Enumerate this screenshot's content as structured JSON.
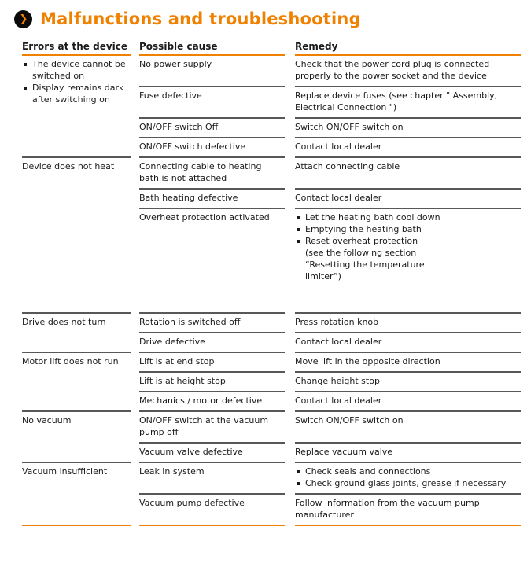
{
  "title": "Malfunctions and troubleshooting",
  "chapter_icon": {
    "name": "chevron-right-icon",
    "glyph": "❯"
  },
  "colors": {
    "accent": "#F08100",
    "divider": "#58585a",
    "text": "#1a1a1a"
  },
  "table": {
    "columns": [
      "Errors at the device",
      "Possible cause",
      "Remedy"
    ],
    "groups": [
      {
        "error": {
          "bullets": [
            "The device cannot be switched on",
            "Display remains dark after switching on"
          ]
        },
        "rows": [
          {
            "cause": {
              "text": "No power supply"
            },
            "remedy": {
              "text": "Check that the power cord plug is connected properly to the power socket and the device"
            }
          },
          {
            "cause": {
              "text": "Fuse defective"
            },
            "remedy": {
              "text": "Replace device fuses (see chapter \" Assembly, Electrical Connection \")"
            }
          },
          {
            "cause": {
              "text": "ON/OFF switch Off"
            },
            "remedy": {
              "text": "Switch ON/OFF switch on"
            }
          },
          {
            "cause": {
              "text": "ON/OFF switch defective"
            },
            "remedy": {
              "text": "Contact local dealer"
            }
          }
        ]
      },
      {
        "error": {
          "text": "Device does not heat"
        },
        "rows": [
          {
            "cause": {
              "text": "Connecting cable to heating bath is not attached"
            },
            "remedy": {
              "text": "Attach connecting cable"
            }
          },
          {
            "cause": {
              "text": "Bath heating defective"
            },
            "remedy": {
              "text": "Contact local dealer"
            }
          },
          {
            "cause": {
              "text": "Overheat protection activated"
            },
            "remedy": {
              "bullets": [
                "Let the heating bath cool down",
                "Emptying the heating bath",
                "Reset overheat protection\n(see the following section\n“Resetting the temperature\nlimiter”)"
              ]
            },
            "tall": true
          }
        ]
      },
      {
        "error": {
          "text": "Drive does not turn"
        },
        "rows": [
          {
            "cause": {
              "text": "Rotation is switched off"
            },
            "remedy": {
              "text": "Press rotation knob"
            }
          },
          {
            "cause": {
              "text": "Drive defective"
            },
            "remedy": {
              "text": "Contact local dealer"
            }
          }
        ]
      },
      {
        "error": {
          "text": "Motor lift does not run"
        },
        "rows": [
          {
            "cause": {
              "text": "Lift is at end stop"
            },
            "remedy": {
              "text": "Move lift in the opposite direction"
            }
          },
          {
            "cause": {
              "text": "Lift is at height stop"
            },
            "remedy": {
              "text": "Change height stop"
            }
          },
          {
            "cause": {
              "text": "Mechanics / motor defective"
            },
            "remedy": {
              "text": "Contact local dealer"
            }
          }
        ]
      },
      {
        "error": {
          "text": "No vacuum"
        },
        "rows": [
          {
            "cause": {
              "text": "ON/OFF switch at the vacuum pump off"
            },
            "remedy": {
              "text": "Switch ON/OFF switch on"
            }
          },
          {
            "cause": {
              "text": "Vacuum valve defective"
            },
            "remedy": {
              "text": "Replace vacuum valve"
            }
          }
        ]
      },
      {
        "error": {
          "text": "Vacuum insufficient"
        },
        "rows": [
          {
            "cause": {
              "text": "Leak in system"
            },
            "remedy": {
              "bullets": [
                "Check seals and connections",
                "Check ground glass joints, grease if necessary"
              ]
            }
          },
          {
            "cause": {
              "text": "Vacuum pump defective"
            },
            "remedy": {
              "text": "Follow information from the vacuum pump manufacturer"
            }
          }
        ]
      }
    ]
  }
}
